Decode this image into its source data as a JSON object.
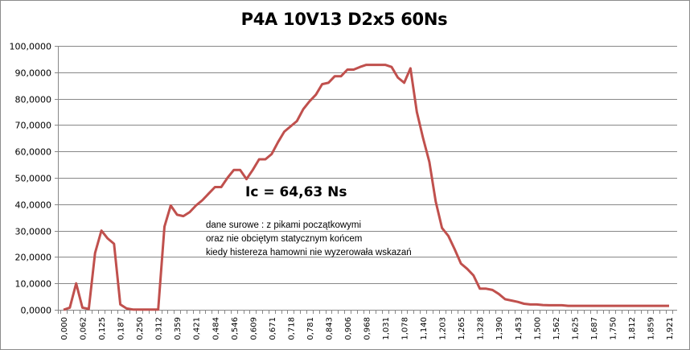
{
  "chart_data": {
    "type": "line",
    "title": "P4A 10V13 D2x5 60Ns",
    "xlabel": "",
    "ylabel": "",
    "ylim": [
      0,
      100
    ],
    "yticks": [
      "0,0000",
      "10,0000",
      "20,0000",
      "30,0000",
      "40,0000",
      "50,0000",
      "60,0000",
      "70,0000",
      "80,0000",
      "90,0000",
      "100,0000"
    ],
    "xtick_labels": [
      "0,000",
      "0,062",
      "0,125",
      "0,187",
      "0,250",
      "0,312",
      "0,359",
      "0,421",
      "0,484",
      "0,546",
      "0,609",
      "0,671",
      "0,718",
      "0,781",
      "0,843",
      "0,906",
      "0,968",
      "1,031",
      "1,078",
      "1,140",
      "1,203",
      "1,265",
      "1,328",
      "1,390",
      "1,453",
      "1,500",
      "1,562",
      "1,625",
      "1,687",
      "1,750",
      "1,812",
      "1,859",
      "1,921"
    ],
    "grid": true,
    "legend": "none",
    "line_color": "#c0504d",
    "series": [
      {
        "name": "Ic",
        "values": [
          0,
          0.8,
          10,
          0.8,
          0.3,
          21.5,
          30,
          27,
          25,
          2,
          0.5,
          0.1,
          0.1,
          0.1,
          0.1,
          0.1,
          31.5,
          39.5,
          36,
          35.5,
          37,
          39.5,
          41.5,
          44,
          46.5,
          46.5,
          50,
          53,
          53,
          49.5,
          53,
          57,
          57,
          59,
          63.5,
          67.5,
          69.5,
          71.5,
          76,
          79,
          81.5,
          85.5,
          86,
          88.5,
          88.5,
          91,
          91,
          92,
          92.8,
          92.8,
          92.8,
          92.8,
          92,
          88,
          86,
          91.5,
          75,
          65,
          56,
          41,
          31,
          28,
          23,
          17.5,
          15.5,
          13,
          8,
          8,
          7.5,
          6,
          4,
          3.5,
          3,
          2.3,
          2,
          2,
          1.8,
          1.7,
          1.7,
          1.7,
          1.5,
          1.5,
          1.5,
          1.5,
          1.5,
          1.5,
          1.5,
          1.5,
          1.5,
          1.5,
          1.5,
          1.5,
          1.5,
          1.5,
          1.5,
          1.5,
          1.5
        ]
      }
    ],
    "annotations": [
      {
        "text": "Ic = 64,63 Ns"
      },
      {
        "text": "dane surowe : z pikami początkowymi"
      },
      {
        "text": "oraz nie obciętym statycznym końcem"
      },
      {
        "text": "kiedy histereza hamowni nie wyzerowała wskazań"
      }
    ]
  },
  "annotation": {
    "main": "Ic = 64,63 Ns",
    "note_line1": "dane surowe : z pikami początkowymi",
    "note_line2": "oraz nie obciętym statycznym końcem",
    "note_line3": "kiedy histereza hamowni nie wyzerowała wskazań"
  }
}
